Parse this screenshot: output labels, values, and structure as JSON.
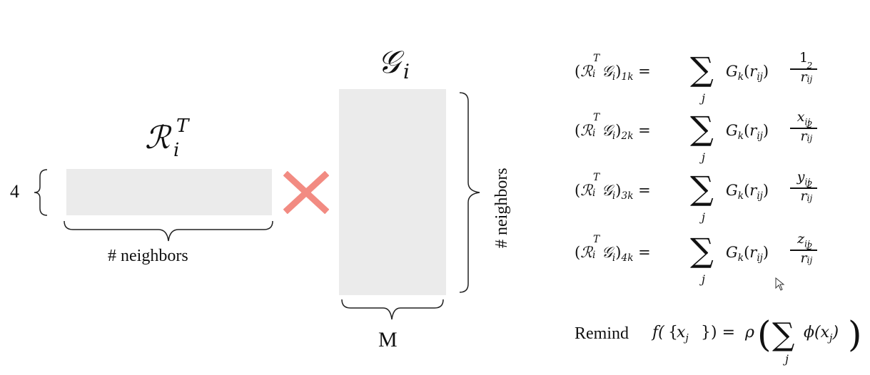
{
  "left_matrix": {
    "rows_label": "4",
    "width_label": "# neighbors"
  },
  "right_matrix": {
    "height_label": "# neighbors",
    "width_label": "M"
  },
  "multiply_symbol_color": "#f28b82",
  "equations": {
    "rows": [
      {
        "index": "1",
        "numerator": "1",
        "numerator_sub": ""
      },
      {
        "index": "2",
        "numerator": "x",
        "numerator_sub": "ij"
      },
      {
        "index": "3",
        "numerator": "y",
        "numerator_sub": "ij"
      },
      {
        "index": "4",
        "numerator": "z",
        "numerator_sub": "ij"
      }
    ],
    "remind_label": "Remind"
  }
}
